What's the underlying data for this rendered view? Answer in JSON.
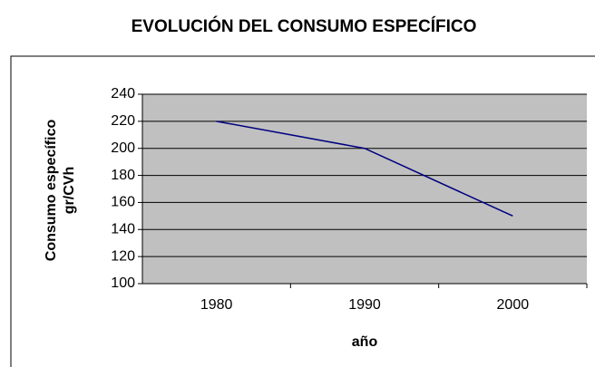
{
  "chart_data": {
    "type": "line",
    "title": "EVOLUCIÓN DEL CONSUMO ESPECÍFICO",
    "x_label": "año",
    "y_label": [
      "Consumo específico",
      "gr/CVh"
    ],
    "categories": [
      "1980",
      "1990",
      "2000"
    ],
    "series": [
      {
        "name": "Consumo específico",
        "color": "#000080",
        "values": [
          220,
          200,
          150
        ]
      }
    ],
    "ylim": [
      100,
      240
    ],
    "yticks": [
      100,
      120,
      140,
      160,
      180,
      200,
      220,
      240
    ],
    "grid": true
  }
}
